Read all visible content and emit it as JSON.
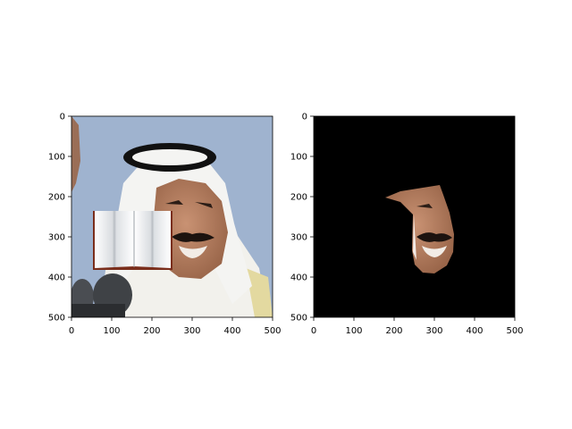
{
  "panels": [
    {
      "id": "left",
      "content": "original",
      "x_ticks": [
        "0",
        "100",
        "200",
        "300",
        "400",
        "500"
      ],
      "y_ticks": [
        "0",
        "100",
        "200",
        "300",
        "400",
        "500"
      ]
    },
    {
      "id": "right",
      "content": "mask",
      "x_ticks": [
        "0",
        "100",
        "200",
        "300",
        "400",
        "500"
      ],
      "y_ticks": [
        "0",
        "100",
        "200",
        "300",
        "400",
        "500"
      ]
    }
  ],
  "colors": {
    "sky": "#9fb3cf",
    "headscarf": "#f4f4f2",
    "agal": "#111111",
    "skin": "#b07a5a",
    "mask_bg": "#000000",
    "book_cover": "#7a2e1c",
    "book_page": "#eceef0"
  }
}
